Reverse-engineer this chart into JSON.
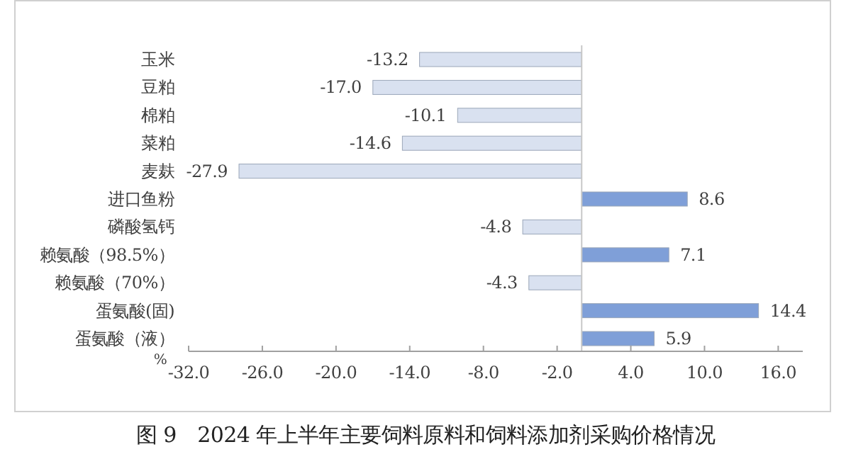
{
  "chart_data": {
    "type": "bar",
    "orientation": "horizontal",
    "title": "图 9　2024 年上半年主要饲料原料和饲料添加剂采购价格情况",
    "xlabel": "%",
    "categories": [
      "玉米",
      "豆粕",
      "棉粕",
      "菜粕",
      "麦麸",
      "进口鱼粉",
      "磷酸氢钙",
      "赖氨酸（98.5%）",
      "赖氨酸（70%）",
      "蛋氨酸(固)",
      "蛋氨酸（液）"
    ],
    "values": [
      -13.2,
      -17.0,
      -10.1,
      -14.6,
      -27.9,
      8.6,
      -4.8,
      7.1,
      -4.3,
      14.4,
      5.9
    ],
    "value_labels": [
      "-13.2",
      "-17.0",
      "-10.1",
      "-14.6",
      "-27.9",
      "8.6",
      "-4.8",
      "7.1",
      "-4.3",
      "14.4",
      "5.9"
    ],
    "colors": [
      "#d9e1f0",
      "#d9e1f0",
      "#d9e1f0",
      "#d9e1f0",
      "#d9e1f0",
      "#7f9fd8",
      "#d9e1f0",
      "#7f9fd8",
      "#d9e1f0",
      "#7f9fd8",
      "#7f9fd8"
    ],
    "xlim": [
      -32,
      18
    ],
    "xticks": [
      {
        "value": -32,
        "label": "-32.0"
      },
      {
        "value": -26,
        "label": "-26.0"
      },
      {
        "value": -20,
        "label": "-20.0"
      },
      {
        "value": -14,
        "label": "-14.0"
      },
      {
        "value": -8,
        "label": "-8.0"
      },
      {
        "value": -2,
        "label": "-2.0"
      },
      {
        "value": 4,
        "label": "4.0"
      },
      {
        "value": 10,
        "label": "10.0"
      },
      {
        "value": 16,
        "label": "16.0"
      }
    ],
    "grid": false
  }
}
